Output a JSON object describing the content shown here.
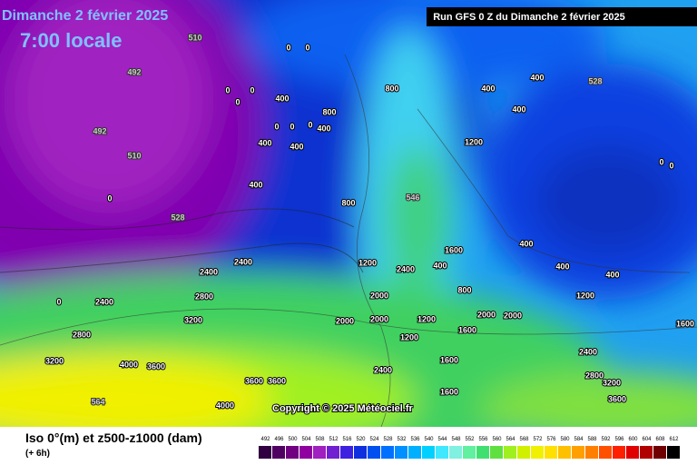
{
  "header": {
    "date": "Dimanche 2 février 2025",
    "time": "7:00 locale",
    "run": "Run GFS 0 Z du Dimanche 2 février 2025"
  },
  "footer": {
    "title": "Iso 0°(m) et z500-z1000 (dam)",
    "step": "(+ 6h)",
    "copyright": "Copyright © 2025 Météociel.fr"
  },
  "legend": {
    "values": [
      492,
      496,
      500,
      504,
      508,
      512,
      516,
      520,
      524,
      528,
      532,
      536,
      540,
      544,
      548,
      552,
      556,
      560,
      564,
      568,
      572,
      576,
      580,
      584,
      588,
      592,
      596,
      600,
      604,
      608,
      612
    ],
    "colors": [
      "#300040",
      "#500060",
      "#700080",
      "#9000a0",
      "#a020c0",
      "#7020d0",
      "#4020e0",
      "#1030e0",
      "#0050f0",
      "#0070ff",
      "#0090ff",
      "#00b0ff",
      "#00d0ff",
      "#40e8ff",
      "#80f0e0",
      "#60f0a0",
      "#40e070",
      "#60e040",
      "#a0f020",
      "#d0f000",
      "#f0f000",
      "#ffe000",
      "#ffc000",
      "#ffa000",
      "#ff8000",
      "#ff5000",
      "#ff2000",
      "#e00000",
      "#b00000",
      "#700000",
      "#000000"
    ]
  },
  "map_labels": [
    510,
    492,
    492,
    510,
    528,
    528,
    564,
    546,
    0,
    0,
    0,
    0,
    0,
    400,
    800,
    400,
    0,
    0,
    0,
    400,
    400,
    0,
    400,
    800,
    800,
    400,
    400,
    1200,
    400,
    0,
    0,
    400,
    400,
    400,
    1200,
    2000,
    1600,
    2000,
    2400,
    2400,
    2800,
    3200,
    2800,
    3200,
    4000,
    3600,
    3600,
    3600,
    4000,
    2400,
    1600,
    1600,
    1200,
    2800,
    3200,
    3600,
    1600,
    2400,
    2000,
    2000,
    2000,
    2400,
    1200,
    1600,
    800,
    400,
    0,
    2400,
    1200
  ]
}
